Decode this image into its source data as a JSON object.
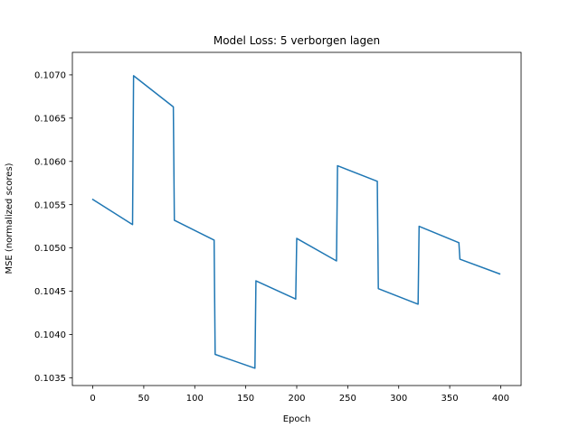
{
  "chart_data": {
    "type": "line",
    "title": "Model Loss: 5 verborgen lagen",
    "xlabel": "Epoch",
    "ylabel": "MSE (normalized scores)",
    "xlim": [
      -20,
      420
    ],
    "ylim": [
      0.10341,
      0.10726
    ],
    "grid": false,
    "legend": "none",
    "x_ticks": [
      0,
      50,
      100,
      150,
      200,
      250,
      300,
      350,
      400
    ],
    "x_tick_labels": [
      "0",
      "50",
      "100",
      "150",
      "200",
      "250",
      "300",
      "350",
      "400"
    ],
    "y_ticks": [
      0.1035,
      0.104,
      0.1045,
      0.105,
      0.1055,
      0.106,
      0.1065,
      0.107
    ],
    "y_tick_labels": [
      "0.1035",
      "0.1040",
      "0.1045",
      "0.1050",
      "0.1055",
      "0.1060",
      "0.1065",
      "0.1070"
    ],
    "series": [
      {
        "color": "#1f77b4",
        "x": [
          0,
          39,
          40,
          79,
          80,
          119,
          120,
          159,
          160,
          199,
          200,
          239,
          240,
          279,
          280,
          319,
          320,
          359,
          360,
          399
        ],
        "y": [
          0.10556,
          0.10527,
          0.10699,
          0.10663,
          0.10532,
          0.10509,
          0.10377,
          0.10361,
          0.10462,
          0.10441,
          0.10511,
          0.10485,
          0.10595,
          0.10577,
          0.10453,
          0.10435,
          0.10525,
          0.10506,
          0.10487,
          0.1047
        ]
      }
    ]
  }
}
